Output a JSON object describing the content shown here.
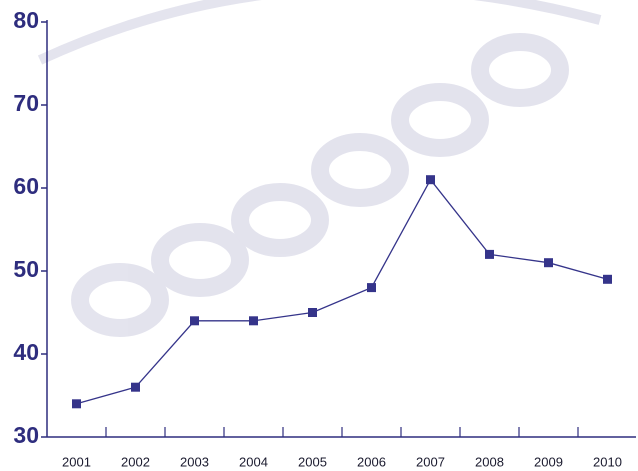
{
  "chart_data": {
    "type": "line",
    "categories": [
      "2001",
      "2002",
      "2003",
      "2004",
      "2005",
      "2006",
      "2007",
      "2008",
      "2009",
      "2010"
    ],
    "series": [
      {
        "name": null,
        "color": "#35348a",
        "values": [
          34,
          36,
          44,
          44,
          45,
          48,
          61,
          52,
          51,
          49
        ]
      }
    ],
    "ylim": [
      30,
      80
    ],
    "yticks": [
      30,
      40,
      50,
      60,
      70,
      80
    ],
    "grid": false
  }
}
